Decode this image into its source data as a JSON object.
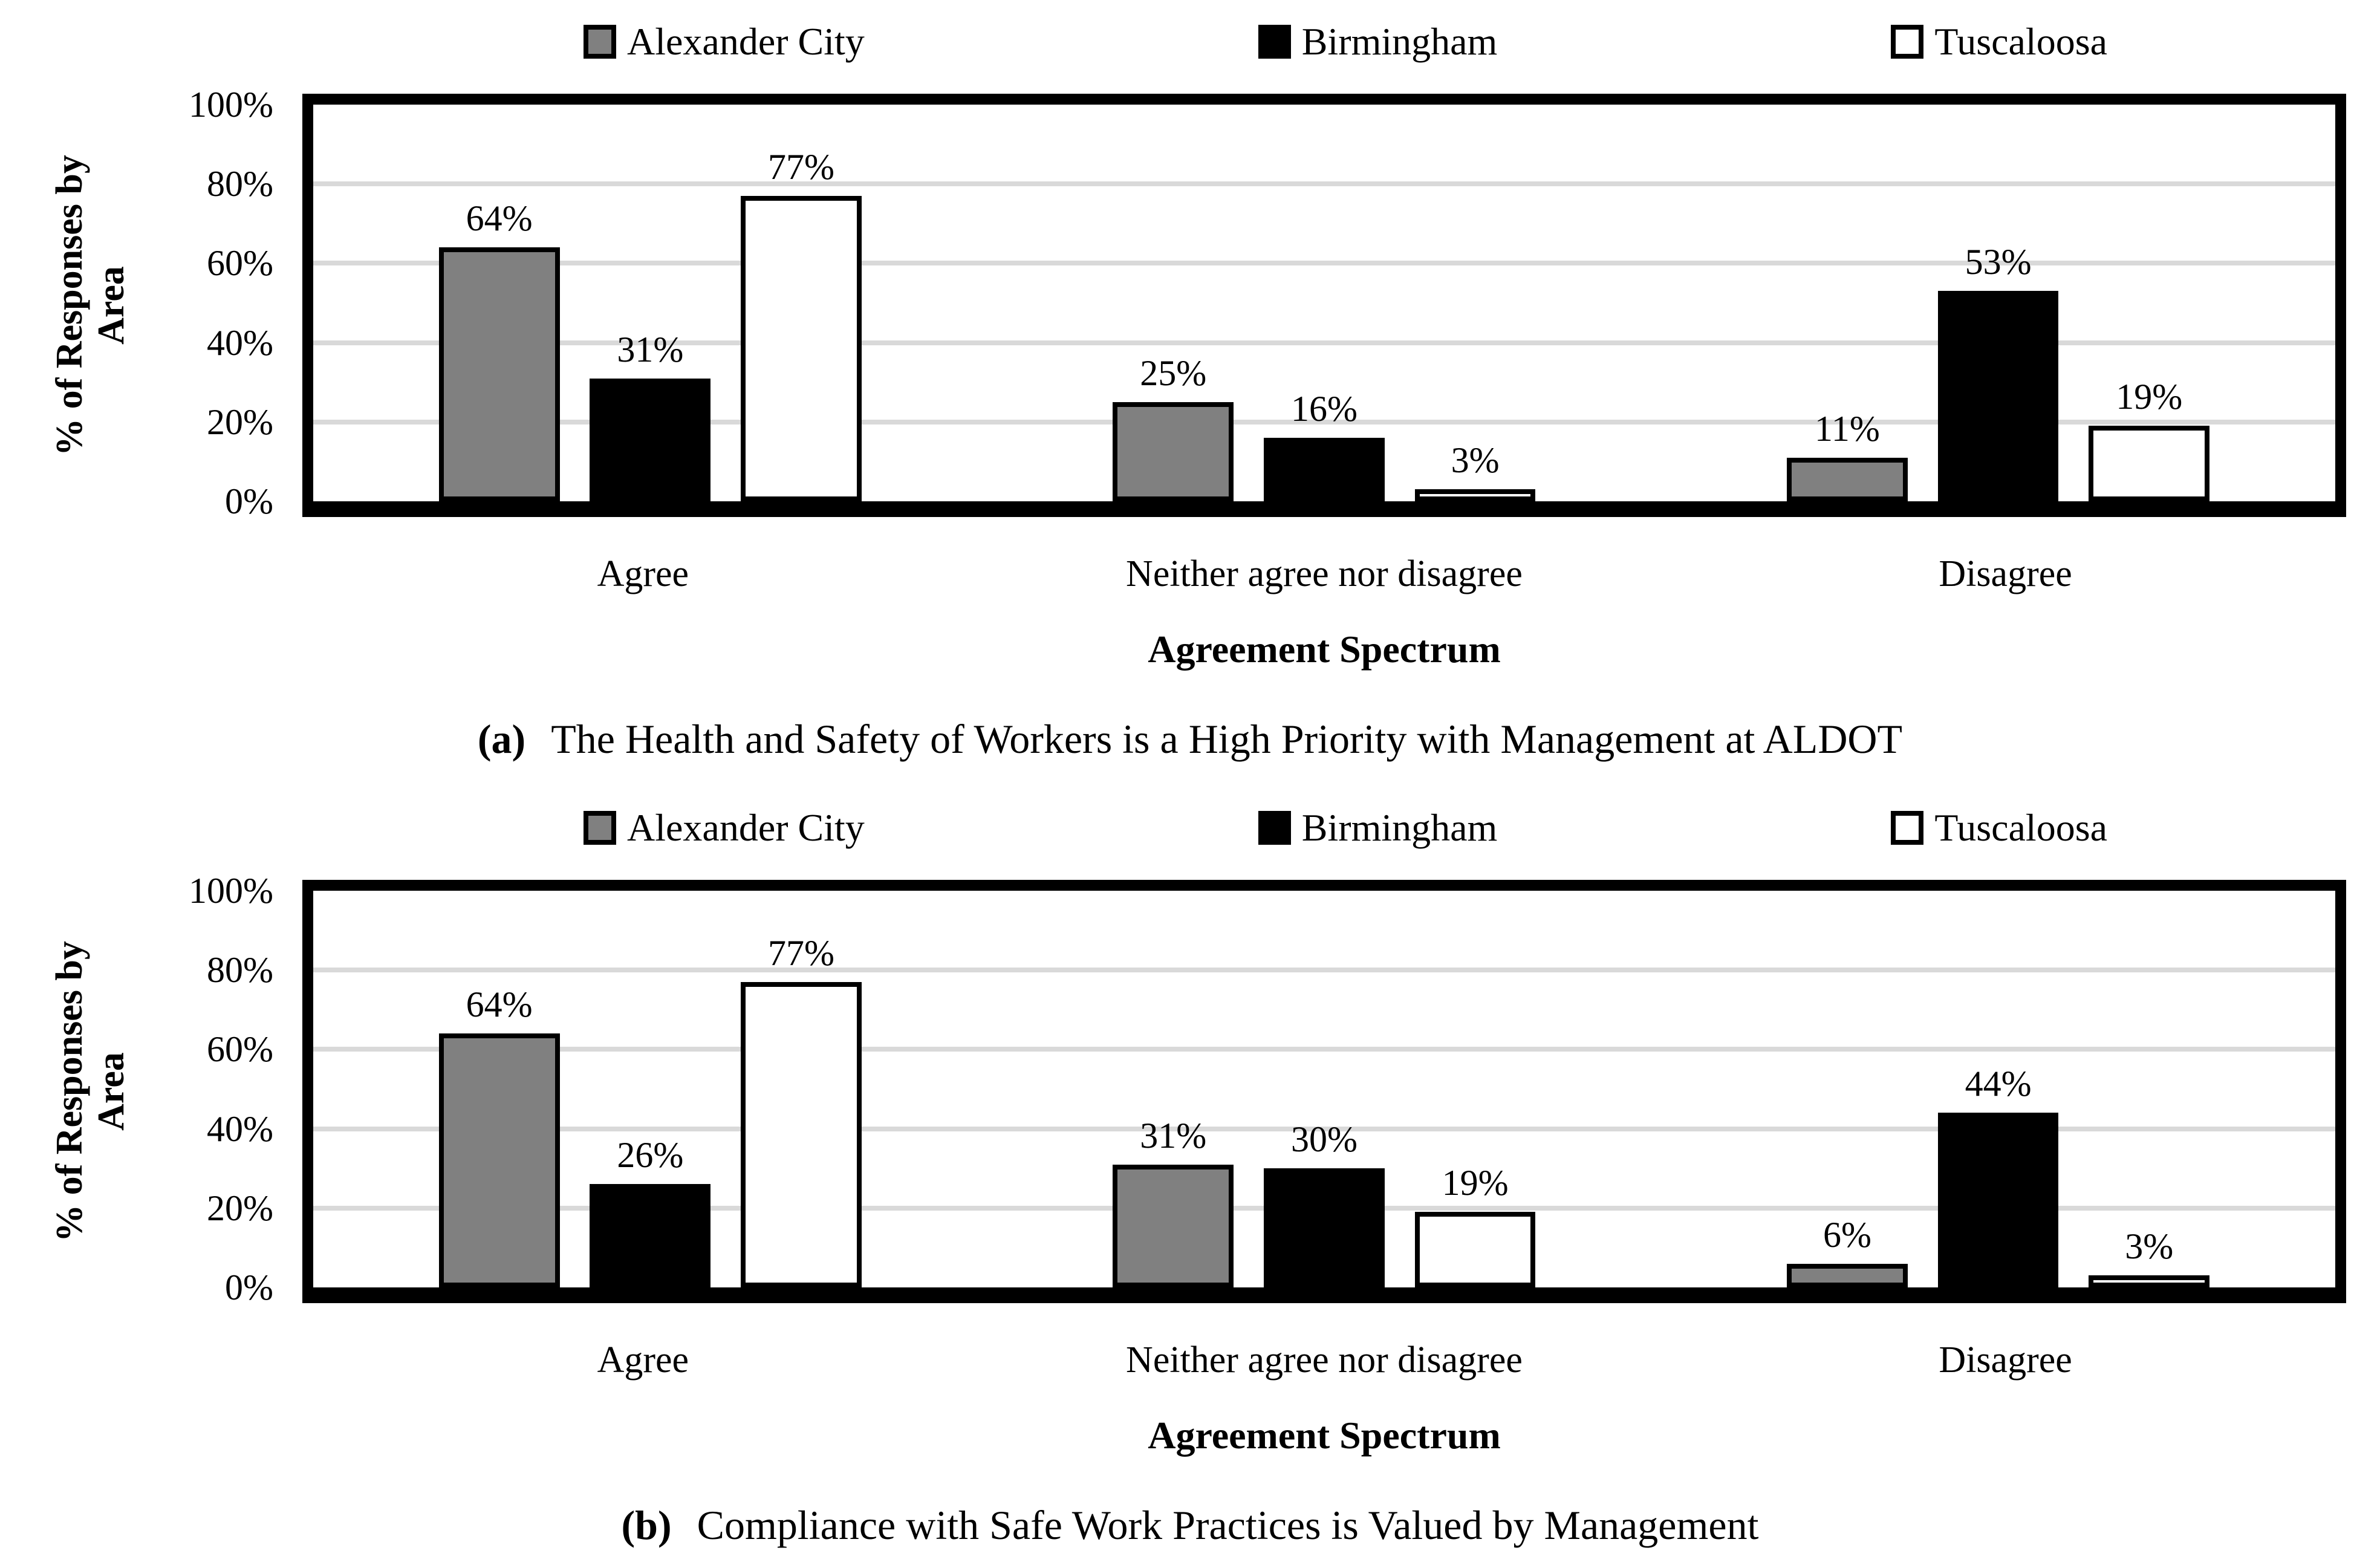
{
  "figure": {
    "background": "#ffffff",
    "text_color": "#000000",
    "axis_color": "#000000",
    "gridline_color": "#d9d9d9"
  },
  "chart_data": [
    {
      "type": "bar",
      "panel_label": "(a)",
      "caption": "The Health and Safety of Workers is a High Priority with Management at ALDOT",
      "xlabel": "Agreement Spectrum",
      "ylabel": "% of Responses by Area",
      "ylim": [
        0,
        100
      ],
      "yticks": [
        0,
        20,
        40,
        60,
        80,
        100
      ],
      "ytick_suffix": "%",
      "gridlines": [
        20,
        40,
        60,
        80
      ],
      "legend_position": "top",
      "grid": "horizontal",
      "categories": [
        "Agree",
        "Neither agree nor disagree",
        "Disagree"
      ],
      "series": [
        {
          "name": "Alexander City",
          "color": "#808080",
          "border_color": "#000000",
          "values": [
            64,
            25,
            11
          ]
        },
        {
          "name": "Birmingham",
          "color": "#000000",
          "border_color": "#000000",
          "values": [
            31,
            16,
            53
          ]
        },
        {
          "name": "Tuscaloosa",
          "color": "#ffffff",
          "border_color": "#000000",
          "values": [
            77,
            3,
            19
          ]
        }
      ],
      "value_label_suffix": "%"
    },
    {
      "type": "bar",
      "panel_label": "(b)",
      "caption": "Compliance with Safe Work Practices is Valued by Management",
      "xlabel": "Agreement Spectrum",
      "ylabel": "% of Responses by Area",
      "ylim": [
        0,
        100
      ],
      "yticks": [
        0,
        20,
        40,
        60,
        80,
        100
      ],
      "ytick_suffix": "%",
      "gridlines": [
        20,
        40,
        60,
        80
      ],
      "legend_position": "top",
      "grid": "horizontal",
      "categories": [
        "Agree",
        "Neither agree nor disagree",
        "Disagree"
      ],
      "series": [
        {
          "name": "Alexander City",
          "color": "#808080",
          "border_color": "#000000",
          "values": [
            64,
            31,
            6
          ]
        },
        {
          "name": "Birmingham",
          "color": "#000000",
          "border_color": "#000000",
          "values": [
            26,
            30,
            44
          ]
        },
        {
          "name": "Tuscaloosa",
          "color": "#ffffff",
          "border_color": "#000000",
          "values": [
            77,
            19,
            3
          ]
        }
      ],
      "value_label_suffix": "%"
    }
  ]
}
